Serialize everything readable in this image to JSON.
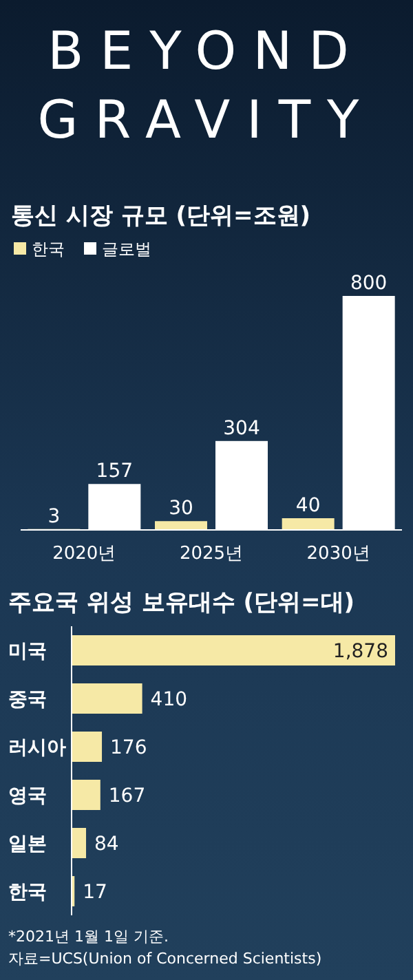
{
  "chart_data": [
    {
      "type": "bar",
      "title": "BEYOND GRAVITY",
      "subtitle": "통신 시장 규모 (단위=조원)",
      "categories": [
        "2020년",
        "2025년",
        "2030년"
      ],
      "series": [
        {
          "name": "한국",
          "color": "#f6e9a6",
          "values": [
            3,
            30,
            40
          ]
        },
        {
          "name": "글로벌",
          "color": "#ffffff",
          "values": [
            157,
            304,
            800
          ]
        }
      ],
      "data_labels": true,
      "legend": "top left"
    },
    {
      "type": "bar",
      "orientation": "horizontal",
      "title": "주요국 위성 보유대수 (단위=대)",
      "categories": [
        "미국",
        "중국",
        "러시아",
        "영국",
        "일본",
        "한국"
      ],
      "values": [
        1878,
        410,
        176,
        167,
        84,
        17
      ],
      "value_labels": [
        "1,878",
        "410",
        "176",
        "167",
        "84",
        "17"
      ],
      "color": "#f6e9a6",
      "annotations": [
        "*2021년 1월 1일 기준.",
        "자료=UCS(Union of Concerned Scientists)"
      ]
    }
  ]
}
